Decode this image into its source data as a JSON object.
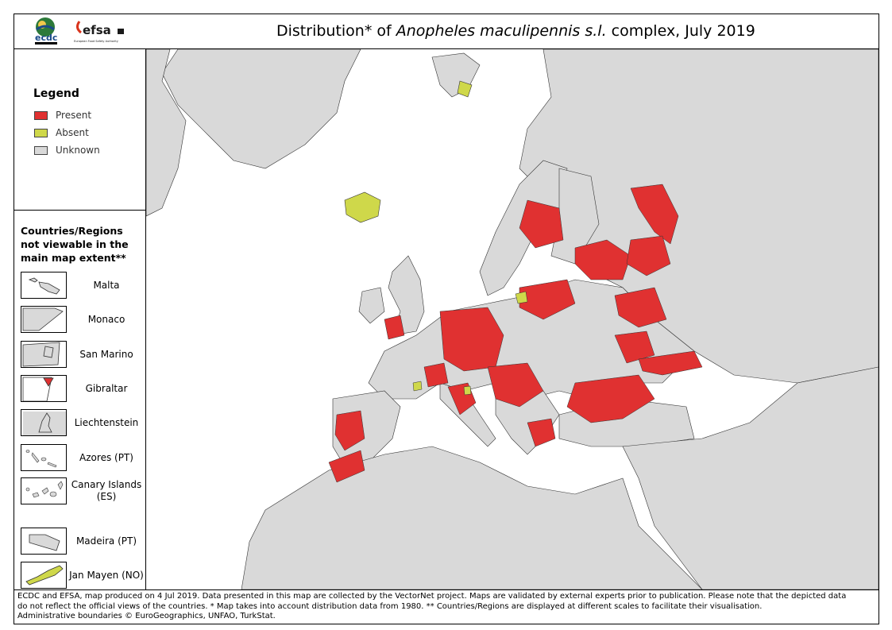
{
  "title": {
    "prefix": "Distribution* of ",
    "species": "Anopheles maculipennis s.l.",
    "suffix": " complex, July 2019"
  },
  "logos": {
    "ecdc": "ecdc",
    "efsa": "efsa",
    "efsa_tagline": "European Food Safety Authority"
  },
  "legend": {
    "title": "Legend",
    "items": [
      {
        "label": "Present",
        "color": "#e03131"
      },
      {
        "label": "Absent",
        "color": "#cfd84a"
      },
      {
        "label": "Unknown",
        "color": "#d9d9d9"
      }
    ]
  },
  "regions_panel": {
    "title": "Countries/Regions not viewable in the main map extent**",
    "items": [
      {
        "label": "Malta",
        "status": "unknown"
      },
      {
        "label": "Monaco",
        "status": "unknown"
      },
      {
        "label": "San Marino",
        "status": "unknown"
      },
      {
        "label": "Gibraltar",
        "status": "present"
      },
      {
        "label": "Liechtenstein",
        "status": "unknown"
      },
      {
        "label": "Azores (PT)",
        "status": "unknown"
      },
      {
        "label": "Canary Islands (ES)",
        "status": "unknown"
      },
      {
        "label": "Madeira (PT)",
        "status": "unknown"
      },
      {
        "label": "Jan Mayen (NO)",
        "status": "absent"
      }
    ]
  },
  "footer": {
    "line1": "ECDC and EFSA, map produced on 4 Jul 2019. Data presented in this map are collected by the VectorNet project. Maps are validated by external experts prior to publication. Please note that the depicted data",
    "line2": "do not reflect the official views of the countries. * Map takes into account distribution data from 1980. ** Countries/Regions are displayed at different scales to facilitate their visualisation.",
    "line3": "Administrative boundaries © EuroGeographics, UNFAO, TurkStat."
  },
  "colors": {
    "present": "#e03131",
    "absent": "#cfd84a",
    "unknown": "#d9d9d9",
    "sea": "#ffffff",
    "border": "#333333"
  }
}
